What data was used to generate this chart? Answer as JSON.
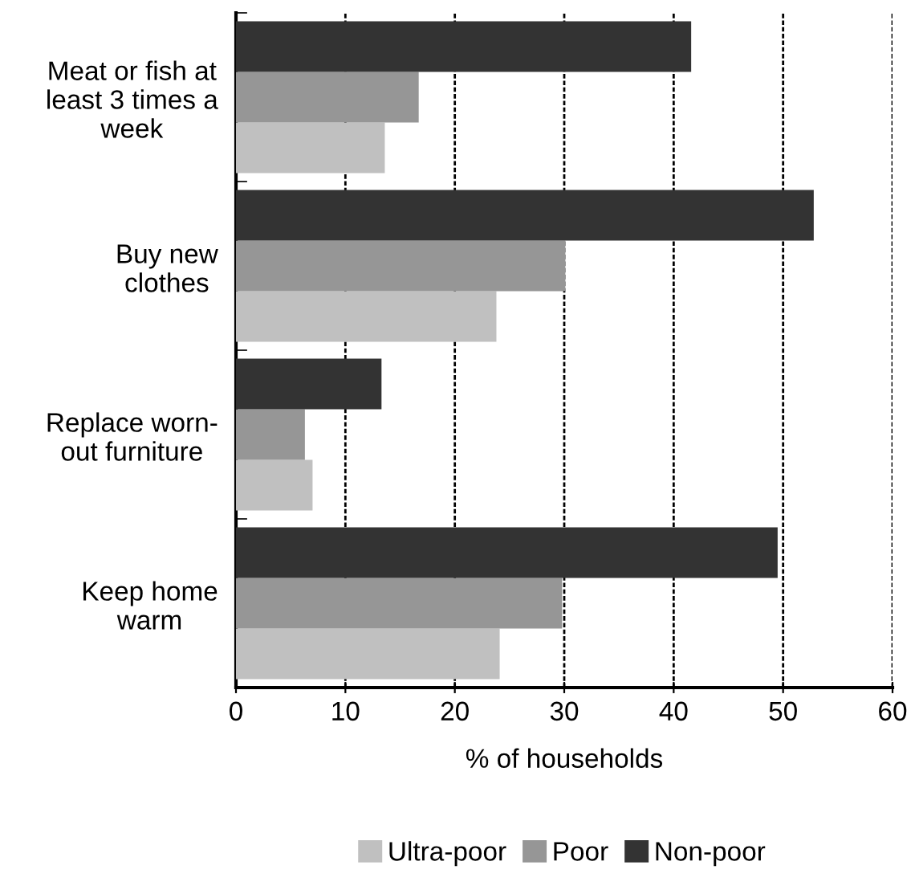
{
  "chart_data": {
    "type": "bar",
    "orientation": "horizontal",
    "xlabel": "% of households",
    "categories": [
      "Meat or fish at\nleast 3 times a\nweek",
      "Buy new\nclothes",
      "Replace worn-\nout furniture",
      "Keep home\nwarm"
    ],
    "series": [
      {
        "name": "Ultra-poor",
        "color": "#c0c0c0",
        "values": [
          13.6,
          23.8,
          7.0,
          24.1
        ]
      },
      {
        "name": "Poor",
        "color": "#969696",
        "values": [
          16.7,
          30.1,
          6.3,
          29.8
        ]
      },
      {
        "name": "Non-poor",
        "color": "#333333",
        "values": [
          41.6,
          52.8,
          13.3,
          49.5
        ]
      }
    ],
    "xlim": [
      0,
      60
    ],
    "xticks": [
      0,
      10,
      20,
      30,
      40,
      50,
      60
    ],
    "grid": "x",
    "legend": "bottom"
  }
}
